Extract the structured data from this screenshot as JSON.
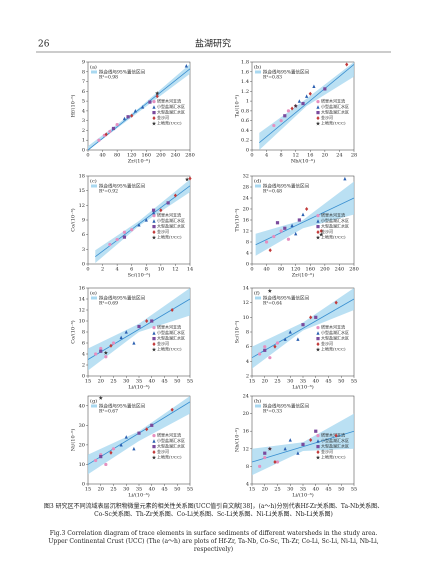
{
  "header": {
    "page_number": "26",
    "journal": "盐湖研究"
  },
  "chart_data": [
    {
      "type": "scatter",
      "panel": "(a)",
      "x_label": "Zr/(10⁻⁶)",
      "y_label": "Hf/(10⁻⁶)",
      "fit_label": "拟合线与95%置信区间",
      "r2_label": "R²=0.98",
      "xlim": [
        0,
        280
      ],
      "xticks": [
        0,
        40,
        80,
        120,
        160,
        200,
        240,
        280
      ],
      "ylim": [
        0,
        9
      ],
      "yticks": [
        0,
        1,
        2,
        3,
        4,
        5,
        6,
        7,
        8,
        9
      ],
      "fit_line": {
        "x": [
          0,
          280
        ],
        "values": [
          0,
          8.3
        ]
      },
      "band": {
        "x": [
          0,
          140,
          280
        ],
        "upper": [
          0.4,
          4.3,
          8.8
        ],
        "lower": [
          0,
          3.9,
          7.8
        ]
      },
      "series": [
        {
          "name": "塔里木河支流",
          "color": "#e58fbf",
          "marker": "circle",
          "x": [
            30,
            45,
            60,
            80
          ],
          "values": [
            1.0,
            1.5,
            1.9,
            2.6
          ]
        },
        {
          "name": "小型盐湖汇水区",
          "color": "#2a5fb0",
          "marker": "triangle",
          "x": [
            100,
            130,
            150,
            270
          ],
          "values": [
            3.2,
            4.0,
            4.4,
            8.6
          ]
        },
        {
          "name": "大型盐湖汇水区",
          "color": "#7a4a9c",
          "marker": "square",
          "x": [
            70,
            110,
            170
          ],
          "values": [
            2.2,
            3.4,
            4.9
          ]
        },
        {
          "name": "金沙河",
          "color": "#c23a3a",
          "marker": "diamond",
          "x": [
            50,
            120,
            190
          ],
          "values": [
            1.6,
            3.5,
            5.5
          ]
        },
        {
          "name": "上地壳(UCC)",
          "color": "#333333",
          "marker": "star",
          "x": [
            190
          ],
          "values": [
            5.8
          ]
        }
      ]
    },
    {
      "type": "scatter",
      "panel": "(b)",
      "x_label": "Nb/(10⁻⁶)",
      "y_label": "Ta/(10⁻⁶)",
      "fit_label": "拟合线与95%置信区间",
      "r2_label": "R²=0.83",
      "xlim": [
        0,
        28
      ],
      "xticks": [
        0,
        4,
        8,
        12,
        16,
        20,
        24,
        28
      ],
      "ylim": [
        0,
        1.8
      ],
      "yticks": [
        0,
        0.2,
        0.4,
        0.6,
        0.8,
        1.0,
        1.2,
        1.4,
        1.6,
        1.8
      ],
      "fit_line": {
        "x": [
          2,
          28
        ],
        "values": [
          0.15,
          1.75
        ]
      },
      "band": {
        "x": [
          2,
          15,
          28
        ],
        "upper": [
          0.35,
          1.05,
          1.8
        ],
        "lower": [
          0,
          0.9,
          1.5
        ]
      },
      "series": [
        {
          "name": "塔里木河支流",
          "color": "#e58fbf",
          "marker": "circle",
          "x": [
            6,
            8,
            10,
            12
          ],
          "values": [
            0.5,
            0.6,
            0.8,
            0.9
          ]
        },
        {
          "name": "小型盐湖汇水区",
          "color": "#2a5fb0",
          "marker": "triangle",
          "x": [
            13,
            15,
            17
          ],
          "values": [
            1.0,
            1.1,
            1.3
          ]
        },
        {
          "name": "大型盐湖汇水区",
          "color": "#7a4a9c",
          "marker": "square",
          "x": [
            9,
            14,
            20
          ],
          "values": [
            0.7,
            0.95,
            1.25
          ]
        },
        {
          "name": "金沙河",
          "color": "#c23a3a",
          "marker": "diamond",
          "x": [
            11,
            16,
            26
          ],
          "values": [
            0.85,
            1.15,
            1.75
          ]
        },
        {
          "name": "上地壳(UCC)",
          "color": "#333333",
          "marker": "star",
          "x": [
            12
          ],
          "values": [
            0.9
          ]
        }
      ]
    },
    {
      "type": "scatter",
      "panel": "(c)",
      "x_label": "Sc/(10⁻⁶)",
      "y_label": "Co/(10⁻⁶)",
      "fit_label": "拟合线与95%置信区间",
      "r2_label": "R²=0.92",
      "xlim": [
        0,
        14
      ],
      "xticks": [
        0,
        2,
        4,
        6,
        8,
        10,
        12,
        14
      ],
      "ylim": [
        0,
        18
      ],
      "yticks": [
        0,
        3,
        6,
        9,
        12,
        15,
        18
      ],
      "fit_line": {
        "x": [
          1,
          14
        ],
        "values": [
          1.5,
          16
        ]
      },
      "band": {
        "x": [
          1,
          7,
          14
        ],
        "upper": [
          2.8,
          8.8,
          17.3
        ],
        "lower": [
          0.2,
          7.8,
          14.7
        ]
      },
      "series": [
        {
          "name": "塔里木河支流",
          "color": "#e58fbf",
          "marker": "circle",
          "x": [
            3,
            4,
            5,
            6
          ],
          "values": [
            4,
            5,
            6.5,
            7
          ]
        },
        {
          "name": "小型盐湖汇水区",
          "color": "#2a5fb0",
          "marker": "triangle",
          "x": [
            7,
            8,
            9
          ],
          "values": [
            8,
            9,
            10.5
          ]
        },
        {
          "name": "大型盐湖汇水区",
          "color": "#7a4a9c",
          "marker": "square",
          "x": [
            5,
            9,
            11
          ],
          "values": [
            5.5,
            11,
            12.5
          ]
        },
        {
          "name": "金沙河",
          "color": "#c23a3a",
          "marker": "diamond",
          "x": [
            10,
            12,
            14
          ],
          "values": [
            11,
            14,
            17.5
          ]
        },
        {
          "name": "上地壳(UCC)",
          "color": "#333333",
          "marker": "star",
          "x": [
            13.6
          ],
          "values": [
            17.3
          ]
        }
      ]
    },
    {
      "type": "scatter",
      "panel": "(d)",
      "x_label": "Zr/(10⁻⁶)",
      "y_label": "Th/(10⁻⁶)",
      "fit_label": "拟合线与95%置信区间",
      "r2_label": "R²=0.48",
      "xlim": [
        0,
        280
      ],
      "xticks": [
        0,
        40,
        80,
        120,
        160,
        200,
        240,
        280
      ],
      "ylim": [
        0,
        32
      ],
      "yticks": [
        0,
        4,
        8,
        12,
        16,
        20,
        24,
        28,
        32
      ],
      "fit_line": {
        "x": [
          10,
          280
        ],
        "values": [
          7,
          24
        ]
      },
      "band": {
        "x": [
          10,
          140,
          280
        ],
        "upper": [
          11,
          16,
          30
        ],
        "lower": [
          3,
          13,
          18
        ]
      },
      "series": [
        {
          "name": "塔里木河支流",
          "color": "#e58fbf",
          "marker": "circle",
          "x": [
            40,
            60,
            80,
            100
          ],
          "values": [
            8,
            10,
            12,
            9
          ]
        },
        {
          "name": "小型盐湖汇水区",
          "color": "#2a5fb0",
          "marker": "triangle",
          "x": [
            110,
            120,
            140,
            255
          ],
          "values": [
            14,
            11,
            18,
            31
          ]
        },
        {
          "name": "大型盐湖汇水区",
          "color": "#7a4a9c",
          "marker": "square",
          "x": [
            70,
            90,
            130
          ],
          "values": [
            15,
            13,
            16
          ]
        },
        {
          "name": "金沙河",
          "color": "#c23a3a",
          "marker": "diamond",
          "x": [
            50,
            150,
            190
          ],
          "values": [
            5,
            20,
            12
          ]
        },
        {
          "name": "上地壳(UCC)",
          "color": "#333333",
          "marker": "star",
          "x": [
            190
          ],
          "values": [
            10.7
          ]
        }
      ]
    },
    {
      "type": "scatter",
      "panel": "(e)",
      "x_label": "Li/(10⁻⁶)",
      "y_label": "Co/(10⁻⁶)",
      "fit_label": "拟合线与95%置信区间",
      "r2_label": "R²=0.69",
      "xlim": [
        15,
        55
      ],
      "xticks": [
        15,
        20,
        25,
        30,
        35,
        40,
        45,
        50,
        55
      ],
      "ylim": [
        0,
        16
      ],
      "yticks": [
        0,
        2,
        4,
        6,
        8,
        10,
        12,
        14,
        16
      ],
      "fit_line": {
        "x": [
          15,
          55
        ],
        "values": [
          3,
          14
        ]
      },
      "band": {
        "x": [
          15,
          35,
          55
        ],
        "upper": [
          5,
          9.5,
          16
        ],
        "lower": [
          1,
          8,
          11
        ]
      },
      "series": [
        {
          "name": "塔里木河支流",
          "color": "#e58fbf",
          "marker": "circle",
          "x": [
            18,
            20,
            22,
            25
          ],
          "values": [
            4,
            5,
            3.5,
            6
          ]
        },
        {
          "name": "小型盐湖汇水区",
          "color": "#2a5fb0",
          "marker": "triangle",
          "x": [
            28,
            30,
            33
          ],
          "values": [
            7,
            8,
            6
          ]
        },
        {
          "name": "大型盐湖汇水区",
          "color": "#7a4a9c",
          "marker": "square",
          "x": [
            20,
            35,
            40
          ],
          "values": [
            4.5,
            9,
            10
          ]
        },
        {
          "name": "金沙河",
          "color": "#c23a3a",
          "marker": "diamond",
          "x": [
            24,
            38,
            48
          ],
          "values": [
            5.5,
            10,
            12
          ]
        },
        {
          "name": "上地壳(UCC)",
          "color": "#333333",
          "marker": "star",
          "x": [
            22
          ],
          "values": [
            4.2
          ]
        }
      ]
    },
    {
      "type": "scatter",
      "panel": "(f)",
      "x_label": "Li/(10⁻⁶)",
      "y_label": "Sc/(10⁻⁶)",
      "fit_label": "拟合线与95%置信区间",
      "r2_label": "R²=0.64",
      "xlim": [
        15,
        55
      ],
      "xticks": [
        15,
        20,
        25,
        30,
        35,
        40,
        45,
        50,
        55
      ],
      "ylim": [
        2,
        14
      ],
      "yticks": [
        2,
        4,
        6,
        8,
        10,
        12,
        14
      ],
      "fit_line": {
        "x": [
          15,
          55
        ],
        "values": [
          4.5,
          12.5
        ]
      },
      "band": {
        "x": [
          15,
          35,
          55
        ],
        "upper": [
          6,
          9.3,
          14
        ],
        "lower": [
          3,
          8.2,
          11
        ]
      },
      "series": [
        {
          "name": "塔里木河支流",
          "color": "#e58fbf",
          "marker": "circle",
          "x": [
            18,
            20,
            22,
            25
          ],
          "values": [
            5,
            6,
            4.5,
            6.5
          ]
        },
        {
          "name": "小型盐湖汇水区",
          "color": "#2a5fb0",
          "marker": "triangle",
          "x": [
            28,
            30,
            33
          ],
          "values": [
            7,
            8,
            7
          ]
        },
        {
          "name": "大型盐湖汇水区",
          "color": "#7a4a9c",
          "marker": "square",
          "x": [
            20,
            35,
            40
          ],
          "values": [
            5.5,
            9,
            10
          ]
        },
        {
          "name": "金沙河",
          "color": "#c23a3a",
          "marker": "diamond",
          "x": [
            24,
            38,
            48
          ],
          "values": [
            6,
            10,
            12
          ]
        },
        {
          "name": "上地壳(UCC)",
          "color": "#333333",
          "marker": "star",
          "x": [
            22
          ],
          "values": [
            13.6
          ]
        }
      ]
    },
    {
      "type": "scatter",
      "panel": "(g)",
      "x_label": "Li/(10⁻⁶)",
      "y_label": "Ni/(10⁻⁶)",
      "fit_label": "拟合线与95%置信区间",
      "r2_label": "R²=0.67",
      "xlim": [
        15,
        55
      ],
      "xticks": [
        15,
        20,
        25,
        30,
        35,
        40,
        45,
        50,
        55
      ],
      "ylim": [
        0,
        45
      ],
      "yticks": [
        0,
        10,
        20,
        30,
        40
      ],
      "fit_line": {
        "x": [
          15,
          55
        ],
        "values": [
          10,
          42
        ]
      },
      "band": {
        "x": [
          15,
          35,
          55
        ],
        "upper": [
          15,
          27,
          45
        ],
        "lower": [
          5,
          22,
          36
        ]
      },
      "series": [
        {
          "name": "塔里木河支流",
          "color": "#e58fbf",
          "marker": "circle",
          "x": [
            18,
            20,
            22,
            25
          ],
          "values": [
            12,
            15,
            10,
            18
          ]
        },
        {
          "name": "小型盐湖汇水区",
          "color": "#2a5fb0",
          "marker": "triangle",
          "x": [
            28,
            30,
            33
          ],
          "values": [
            20,
            24,
            18
          ]
        },
        {
          "name": "大型盐湖汇水区",
          "color": "#7a4a9c",
          "marker": "square",
          "x": [
            20,
            35,
            40
          ],
          "values": [
            14,
            26,
            30
          ]
        },
        {
          "name": "金沙河",
          "color": "#c23a3a",
          "marker": "diamond",
          "x": [
            24,
            38,
            48
          ],
          "values": [
            16,
            28,
            38
          ]
        },
        {
          "name": "上地壳(UCC)",
          "color": "#333333",
          "marker": "star",
          "x": [
            20
          ],
          "values": [
            44
          ]
        }
      ]
    },
    {
      "type": "scatter",
      "panel": "(h)",
      "x_label": "Li/(10⁻⁶)",
      "y_label": "Nb/(10⁻⁶)",
      "fit_label": "拟合线与95%置信区间",
      "r2_label": "R²=0.33",
      "xlim": [
        15,
        55
      ],
      "xticks": [
        15,
        20,
        25,
        30,
        35,
        40,
        45,
        50,
        55
      ],
      "ylim": [
        4,
        24
      ],
      "yticks": [
        4,
        8,
        12,
        16,
        20,
        24
      ],
      "fit_line": {
        "x": [
          15,
          55
        ],
        "values": [
          9,
          16
        ]
      },
      "band": {
        "x": [
          15,
          35,
          55
        ],
        "upper": [
          12,
          13.5,
          20
        ],
        "lower": [
          6,
          11.5,
          12
        ]
      },
      "series": [
        {
          "name": "塔里木河支流",
          "color": "#e58fbf",
          "marker": "circle",
          "x": [
            18,
            20,
            22,
            25
          ],
          "values": [
            8,
            10,
            12,
            9
          ]
        },
        {
          "name": "小型盐湖汇水区",
          "color": "#2a5fb0",
          "marker": "triangle",
          "x": [
            28,
            30,
            33
          ],
          "values": [
            12,
            14,
            11
          ]
        },
        {
          "name": "大型盐湖汇水区",
          "color": "#7a4a9c",
          "marker": "square",
          "x": [
            20,
            35,
            40
          ],
          "values": [
            11,
            13,
            16
          ]
        },
        {
          "name": "金沙河",
          "color": "#c23a3a",
          "marker": "diamond",
          "x": [
            24,
            38,
            48
          ],
          "values": [
            9,
            14,
            15
          ]
        },
        {
          "name": "上地壳(UCC)",
          "color": "#333333",
          "marker": "star",
          "x": [
            22
          ],
          "values": [
            12
          ]
        }
      ]
    }
  ],
  "caption": {
    "cn": "图3  研究区不同流域表层沉积物微量元素的相关性关系图(UCC值引自文献[38]，(a～h)分别代表Hf-Zr关系图、Ta-Nb关系图、Co-Sc关系图、Th-Zr关系图、Co-Li关系图、Sc-Li关系图、Ni-Li关系图、Nb-Li关系图)",
    "en": "Fig.3  Correlation diagram of trace elements in surface sediments of different watersheds in the study area. Upper Continental Crust (UCC) (The (a～h) are plots of Hf-Zr, Ta-Nb, Co-Sc, Th-Zr, Co-Li, Sc-Li, Ni-Li, Nb-Li, respectively)"
  }
}
